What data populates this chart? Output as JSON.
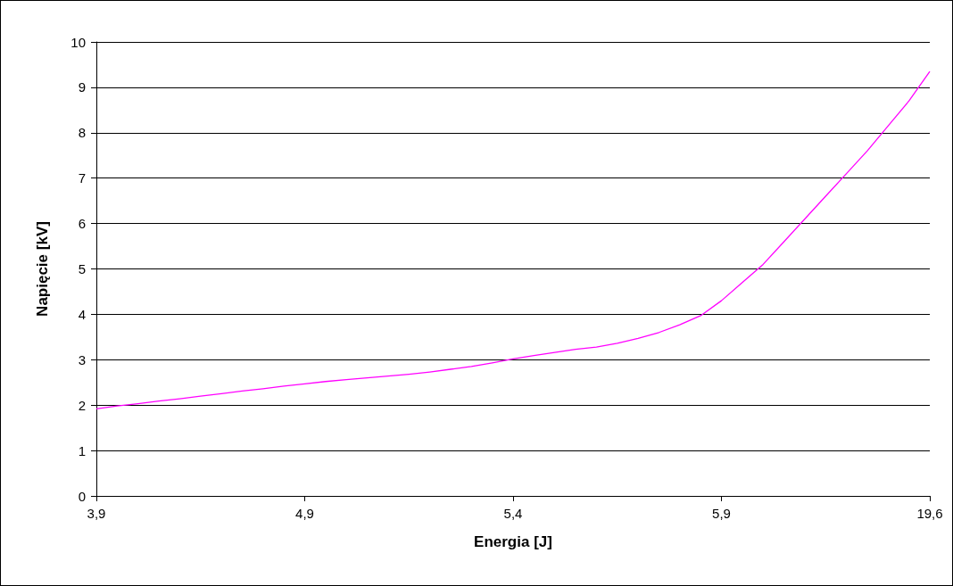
{
  "chart_data": {
    "type": "line",
    "xlabel": "Energia [J]",
    "ylabel": "Napięcie [kV]",
    "categories": [
      "3,9",
      null,
      null,
      null,
      null,
      null,
      null,
      null,
      null,
      null,
      "4,9",
      null,
      null,
      null,
      null,
      null,
      null,
      null,
      null,
      null,
      "5,4",
      null,
      null,
      null,
      null,
      null,
      null,
      null,
      null,
      null,
      "5,9",
      null,
      null,
      null,
      null,
      null,
      null,
      null,
      null,
      null,
      "19,6"
    ],
    "series": [
      {
        "color": "#ff00ff",
        "values": [
          1.92,
          1.98,
          2.03,
          2.09,
          2.14,
          2.2,
          2.25,
          2.31,
          2.36,
          2.42,
          2.47,
          2.52,
          2.56,
          2.6,
          2.64,
          2.68,
          2.73,
          2.79,
          2.85,
          2.93,
          3.02,
          3.09,
          3.16,
          3.23,
          3.28,
          3.36,
          3.47,
          3.6,
          3.77,
          3.97,
          4.3,
          4.7,
          5.1,
          5.6,
          6.1,
          6.6,
          7.1,
          7.6,
          8.15,
          8.7,
          9.35
        ]
      }
    ],
    "ylim": [
      0,
      10
    ],
    "yticks": [
      0,
      1,
      2,
      3,
      4,
      5,
      6,
      7,
      8,
      9,
      10
    ],
    "grid": "y",
    "marker": "none",
    "line_style": "solid"
  }
}
